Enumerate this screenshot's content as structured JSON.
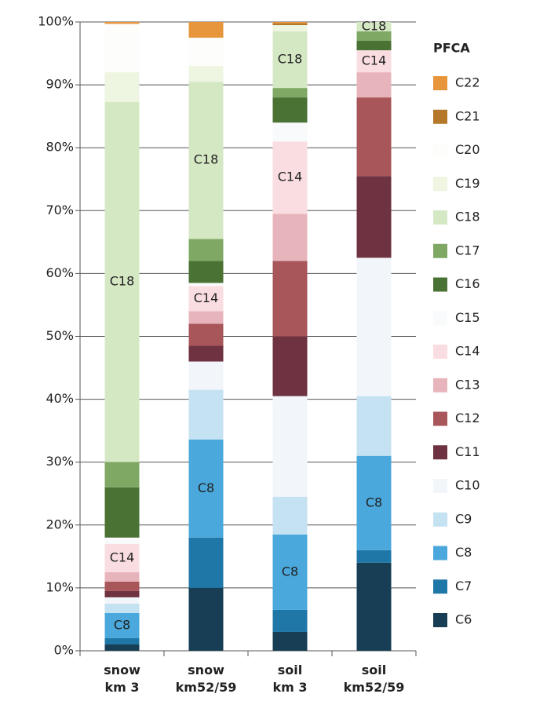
{
  "chart_data": {
    "type": "stacked_bar_percent",
    "categories": [
      "snow\nkm 3",
      "snow\nkm52/59",
      "soil\nkm 3",
      "soil\nkm52/59"
    ],
    "legend_title": "PFCA",
    "ylim": [
      0,
      100
    ],
    "yticks": [
      {
        "value": 0,
        "label": "0%"
      },
      {
        "value": 10,
        "label": "10%"
      },
      {
        "value": 20,
        "label": "20%"
      },
      {
        "value": 30,
        "label": "30%"
      },
      {
        "value": 40,
        "label": "40%"
      },
      {
        "value": 50,
        "label": "50%"
      },
      {
        "value": 60,
        "label": "60%"
      },
      {
        "value": 70,
        "label": "70%"
      },
      {
        "value": 80,
        "label": "80%"
      },
      {
        "value": 90,
        "label": "90%"
      },
      {
        "value": 100,
        "label": "100%"
      }
    ],
    "grid": true,
    "series": [
      {
        "name": "C6",
        "color": "#173e55",
        "values": [
          1,
          10,
          3,
          14
        ]
      },
      {
        "name": "C7",
        "color": "#1f77a8",
        "values": [
          1,
          8,
          3.5,
          2
        ]
      },
      {
        "name": "C8",
        "color": "#4aa8dc",
        "values": [
          4,
          15.6,
          12,
          15
        ],
        "segment_labels": [
          "C8",
          "C8",
          "C8",
          "C8"
        ]
      },
      {
        "name": "C9",
        "color": "#c5e2f2",
        "values": [
          1.5,
          7.9,
          6,
          9.5
        ]
      },
      {
        "name": "C10",
        "color": "#f2f6fa",
        "values": [
          1,
          4.5,
          16,
          22
        ]
      },
      {
        "name": "C11",
        "color": "#6e3240",
        "values": [
          1,
          2.5,
          9.5,
          13
        ]
      },
      {
        "name": "C12",
        "color": "#a8565a",
        "values": [
          1.5,
          3.5,
          12,
          12.5
        ]
      },
      {
        "name": "C13",
        "color": "#e8b4bc",
        "values": [
          1.5,
          2,
          7.5,
          4
        ]
      },
      {
        "name": "C14",
        "color": "#fadde0",
        "values": [
          4.5,
          4,
          11.5,
          3.5
        ],
        "segment_labels": [
          "C14",
          "C14",
          "C14",
          "C14"
        ]
      },
      {
        "name": "C15",
        "color": "#f9fafb",
        "values": [
          1,
          0.5,
          3,
          0
        ]
      },
      {
        "name": "C16",
        "color": "#4a7234",
        "values": [
          8,
          3.5,
          4,
          1.5
        ]
      },
      {
        "name": "C17",
        "color": "#7fa864",
        "values": [
          4,
          3.5,
          1.5,
          1.5
        ]
      },
      {
        "name": "C18",
        "color": "#d5e8c4",
        "values": [
          57.3,
          25,
          9,
          1.5
        ],
        "segment_labels": [
          "C18",
          "C18",
          "C18",
          "C18"
        ]
      },
      {
        "name": "C19",
        "color": "#eef5e0",
        "values": [
          4.7,
          2.5,
          1,
          0
        ]
      },
      {
        "name": "C20",
        "color": "#fdfdfb",
        "values": [
          7.7,
          4.5,
          0,
          0
        ]
      },
      {
        "name": "C21",
        "color": "#b5772a",
        "values": [
          0,
          0,
          0.3,
          0
        ]
      },
      {
        "name": "C22",
        "color": "#e8963c",
        "values": [
          0.3,
          2.5,
          0.2,
          0
        ]
      }
    ]
  }
}
